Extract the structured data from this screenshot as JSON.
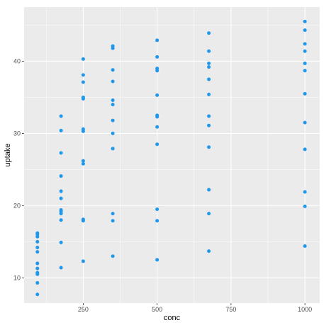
{
  "chart_data": {
    "type": "scatter",
    "title": "",
    "xlabel": "conc",
    "ylabel": "uptake",
    "xlim": [
      50,
      1050
    ],
    "ylim": [
      6.5,
      47.5
    ],
    "x_ticks": [
      250,
      500,
      750,
      1000
    ],
    "y_ticks": [
      10,
      20,
      30,
      40
    ],
    "grid": true,
    "point_color": "#1f97ea",
    "panel_color": "#ebebeb",
    "grid_color": "#ffffff",
    "points": [
      {
        "x": 95,
        "y": 16.2
      },
      {
        "x": 95,
        "y": 16.0
      },
      {
        "x": 95,
        "y": 15.7
      },
      {
        "x": 95,
        "y": 15.0
      },
      {
        "x": 95,
        "y": 14.2
      },
      {
        "x": 95,
        "y": 13.6
      },
      {
        "x": 95,
        "y": 12.0
      },
      {
        "x": 95,
        "y": 11.3
      },
      {
        "x": 95,
        "y": 10.7
      },
      {
        "x": 95,
        "y": 10.5
      },
      {
        "x": 95,
        "y": 9.3
      },
      {
        "x": 95,
        "y": 7.7
      },
      {
        "x": 175,
        "y": 32.4
      },
      {
        "x": 175,
        "y": 30.4
      },
      {
        "x": 175,
        "y": 27.3
      },
      {
        "x": 175,
        "y": 24.1
      },
      {
        "x": 175,
        "y": 22.0
      },
      {
        "x": 175,
        "y": 21.0
      },
      {
        "x": 175,
        "y": 19.4
      },
      {
        "x": 175,
        "y": 19.2
      },
      {
        "x": 175,
        "y": 18.9
      },
      {
        "x": 175,
        "y": 18.0
      },
      {
        "x": 175,
        "y": 14.9
      },
      {
        "x": 175,
        "y": 11.4
      },
      {
        "x": 250,
        "y": 40.3
      },
      {
        "x": 250,
        "y": 38.1
      },
      {
        "x": 250,
        "y": 37.1
      },
      {
        "x": 250,
        "y": 35.0
      },
      {
        "x": 250,
        "y": 34.8
      },
      {
        "x": 250,
        "y": 30.6
      },
      {
        "x": 250,
        "y": 30.3
      },
      {
        "x": 250,
        "y": 26.2
      },
      {
        "x": 250,
        "y": 25.8
      },
      {
        "x": 250,
        "y": 18.1
      },
      {
        "x": 250,
        "y": 17.9
      },
      {
        "x": 250,
        "y": 12.3
      },
      {
        "x": 350,
        "y": 42.1
      },
      {
        "x": 350,
        "y": 41.8
      },
      {
        "x": 350,
        "y": 38.8
      },
      {
        "x": 350,
        "y": 37.2
      },
      {
        "x": 350,
        "y": 34.6
      },
      {
        "x": 350,
        "y": 34.0
      },
      {
        "x": 350,
        "y": 31.8
      },
      {
        "x": 350,
        "y": 30.0
      },
      {
        "x": 350,
        "y": 27.9
      },
      {
        "x": 350,
        "y": 18.9
      },
      {
        "x": 350,
        "y": 17.9
      },
      {
        "x": 350,
        "y": 13.0
      },
      {
        "x": 500,
        "y": 42.9
      },
      {
        "x": 500,
        "y": 40.6
      },
      {
        "x": 500,
        "y": 39.0
      },
      {
        "x": 500,
        "y": 38.7
      },
      {
        "x": 500,
        "y": 35.3
      },
      {
        "x": 500,
        "y": 32.5
      },
      {
        "x": 500,
        "y": 32.3
      },
      {
        "x": 500,
        "y": 30.9
      },
      {
        "x": 500,
        "y": 28.5
      },
      {
        "x": 500,
        "y": 19.5
      },
      {
        "x": 500,
        "y": 17.9
      },
      {
        "x": 500,
        "y": 12.5
      },
      {
        "x": 675,
        "y": 43.9
      },
      {
        "x": 675,
        "y": 41.4
      },
      {
        "x": 675,
        "y": 39.7
      },
      {
        "x": 675,
        "y": 39.2
      },
      {
        "x": 675,
        "y": 37.5
      },
      {
        "x": 675,
        "y": 35.4
      },
      {
        "x": 675,
        "y": 32.4
      },
      {
        "x": 675,
        "y": 31.1
      },
      {
        "x": 675,
        "y": 28.1
      },
      {
        "x": 675,
        "y": 22.2
      },
      {
        "x": 675,
        "y": 18.9
      },
      {
        "x": 675,
        "y": 13.7
      },
      {
        "x": 1000,
        "y": 45.5
      },
      {
        "x": 1000,
        "y": 44.3
      },
      {
        "x": 1000,
        "y": 42.4
      },
      {
        "x": 1000,
        "y": 41.4
      },
      {
        "x": 1000,
        "y": 39.7
      },
      {
        "x": 1000,
        "y": 38.7
      },
      {
        "x": 1000,
        "y": 35.5
      },
      {
        "x": 1000,
        "y": 31.5
      },
      {
        "x": 1000,
        "y": 27.8
      },
      {
        "x": 1000,
        "y": 21.9
      },
      {
        "x": 1000,
        "y": 19.9
      },
      {
        "x": 1000,
        "y": 14.4
      }
    ]
  }
}
